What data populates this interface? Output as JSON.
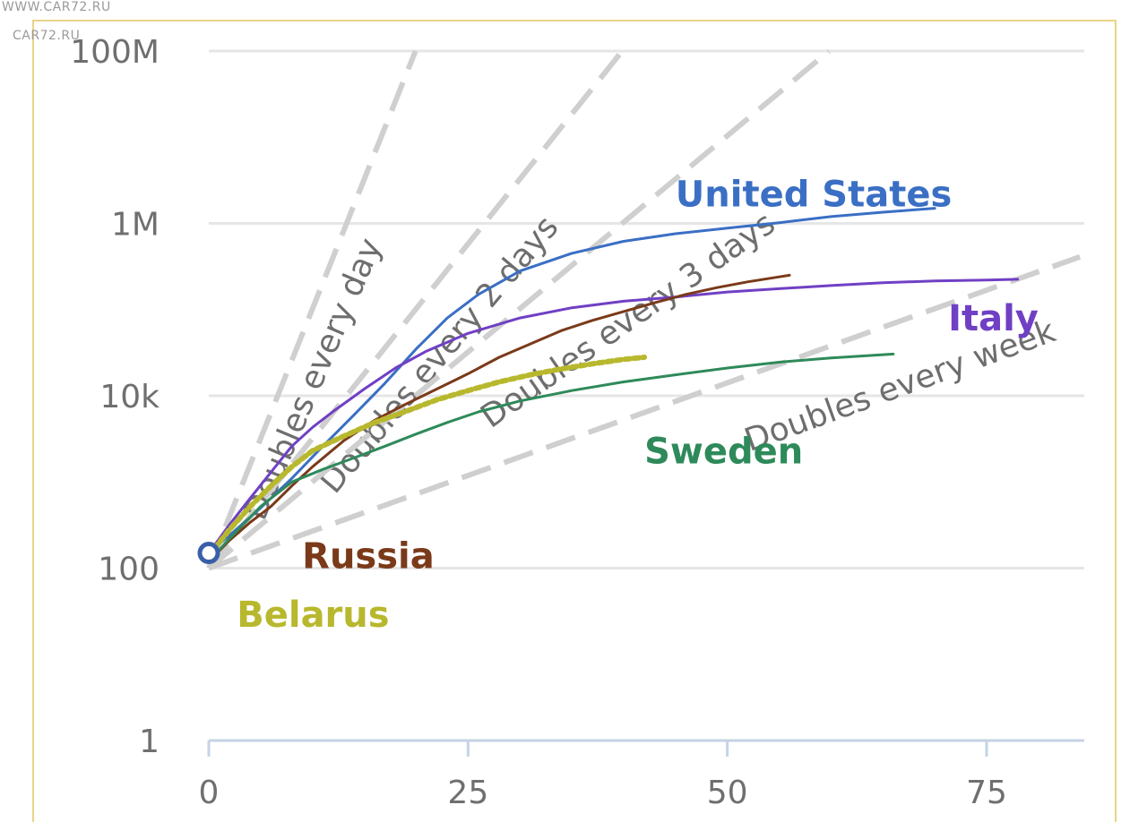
{
  "watermark": {
    "line1": "WWW.CAR72.RU",
    "line2": "CAR72.RU"
  },
  "chart_data": {
    "type": "line",
    "title": "",
    "xlabel": "",
    "ylabel": "",
    "y_scale": "log",
    "xlim": [
      0,
      85
    ],
    "ylim": [
      1,
      100000000
    ],
    "x_ticks": [
      0,
      25,
      50,
      75
    ],
    "x_tick_labels": [
      "0",
      "25",
      "50",
      "75"
    ],
    "y_ticks": [
      1,
      100,
      10000,
      1000000,
      100000000
    ],
    "y_tick_labels": [
      "1",
      "100",
      "10k",
      "1M",
      "100M"
    ],
    "grid": true,
    "legend": "inline labels",
    "reference_lines": [
      {
        "name": "Doubles every day",
        "doubling_days": 1,
        "x_end": 20,
        "color": "#cfcfcf"
      },
      {
        "name": "Doubles every 2 days",
        "doubling_days": 2,
        "x_end": 40,
        "color": "#cfcfcf"
      },
      {
        "name": "Doubles every 3 days",
        "doubling_days": 3,
        "x_end": 60,
        "color": "#cfcfcf"
      },
      {
        "name": "Doubles every week",
        "doubling_days": 7,
        "x_end": 84,
        "color": "#cfcfcf"
      }
    ],
    "series": [
      {
        "name": "United States",
        "color": "#3a6fc4",
        "x": [
          0,
          2,
          5,
          8,
          11,
          14,
          17,
          20,
          23,
          26,
          30,
          35,
          40,
          45,
          50,
          55,
          60,
          65,
          70
        ],
        "y": [
          150,
          240,
          500,
          1100,
          2600,
          6000,
          14000,
          35000,
          80000,
          150000,
          280000,
          450000,
          620000,
          760000,
          880000,
          1020000,
          1200000,
          1350000,
          1500000
        ]
      },
      {
        "name": "Italy",
        "color": "#7040c4",
        "x": [
          0,
          2,
          4,
          6,
          8,
          10,
          12,
          15,
          18,
          21,
          25,
          30,
          35,
          40,
          45,
          50,
          55,
          60,
          65,
          70,
          75,
          78
        ],
        "y": [
          150,
          320,
          650,
          1300,
          2600,
          4300,
          6600,
          12000,
          21000,
          33000,
          53000,
          80000,
          105000,
          125000,
          140000,
          160000,
          175000,
          190000,
          205000,
          215000,
          220000,
          225000
        ]
      },
      {
        "name": "Russia",
        "color": "#7a3a1a",
        "x": [
          0,
          2,
          4,
          6,
          8,
          10,
          13,
          16,
          19,
          22,
          25,
          28,
          31,
          34,
          37,
          40,
          43,
          46,
          49,
          52,
          55,
          56
        ],
        "y": [
          120,
          210,
          340,
          520,
          900,
          1500,
          3000,
          5200,
          8000,
          12000,
          18000,
          28000,
          40000,
          57000,
          75000,
          95000,
          120000,
          150000,
          180000,
          210000,
          240000,
          250000
        ]
      },
      {
        "name": "Belarus",
        "color": "#b8b82e",
        "x": [
          0,
          2,
          4,
          6,
          8,
          10,
          13,
          16,
          19,
          22,
          25,
          28,
          31,
          34,
          37,
          40,
          42
        ],
        "y": [
          140,
          280,
          520,
          900,
          1500,
          2300,
          3400,
          4900,
          6600,
          9000,
          11500,
          14500,
          17500,
          20500,
          23500,
          26500,
          28000
        ]
      },
      {
        "name": "Sweden",
        "color": "#2e8a5a",
        "x": [
          0,
          2,
          5,
          8,
          11,
          14,
          17,
          20,
          23,
          26,
          30,
          35,
          40,
          45,
          50,
          55,
          60,
          65,
          66
        ],
        "y": [
          120,
          220,
          520,
          1000,
          1400,
          1900,
          2600,
          3600,
          4900,
          6500,
          8700,
          11500,
          14500,
          17500,
          21000,
          24500,
          27500,
          30000,
          30500
        ]
      }
    ],
    "origin_marker": {
      "x": 0,
      "y": 150,
      "color": "#3a5fa8"
    }
  }
}
